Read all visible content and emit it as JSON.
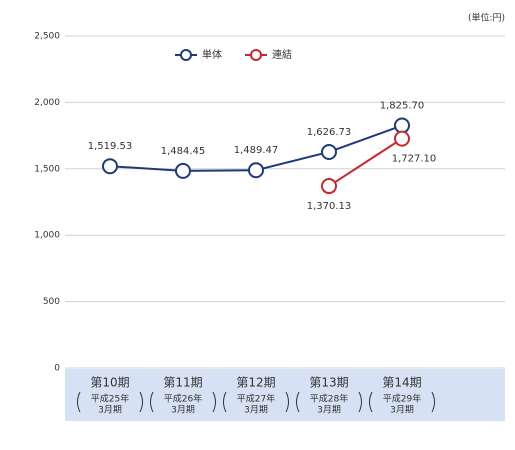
{
  "chart_data": {
    "type": "line",
    "unit_note": "(単位:円)",
    "categories": [
      "第10期",
      "第11期",
      "第12期",
      "第13期",
      "第14期"
    ],
    "category_sublabels": [
      [
        "平成25年",
        "3月期"
      ],
      [
        "平成26年",
        "3月期"
      ],
      [
        "平成27年",
        "3月期"
      ],
      [
        "平成28年",
        "3月期"
      ],
      [
        "平成29年",
        "3月期"
      ]
    ],
    "series": [
      {
        "name": "単体",
        "color": "#1e3a78",
        "values": [
          1519.53,
          1484.45,
          1489.47,
          1626.73,
          1825.7
        ],
        "value_labels": [
          "1,519.53",
          "1,484.45",
          "1,489.47",
          "1,626.73",
          "1,825.70"
        ]
      },
      {
        "name": "連結",
        "color": "#c8282d",
        "values": [
          null,
          null,
          null,
          1370.13,
          1727.1
        ],
        "value_labels": [
          null,
          null,
          null,
          "1,370.13",
          "1,727.10"
        ]
      }
    ],
    "ylim": [
      0,
      2500
    ],
    "yticks": [
      0,
      500,
      {
        "value": 1000,
        "label": "1,000"
      },
      {
        "value": 1500,
        "label": "1,500"
      },
      {
        "value": 2000,
        "label": "2,000"
      },
      {
        "value": 2500,
        "label": "2,500"
      }
    ],
    "grid": true
  }
}
